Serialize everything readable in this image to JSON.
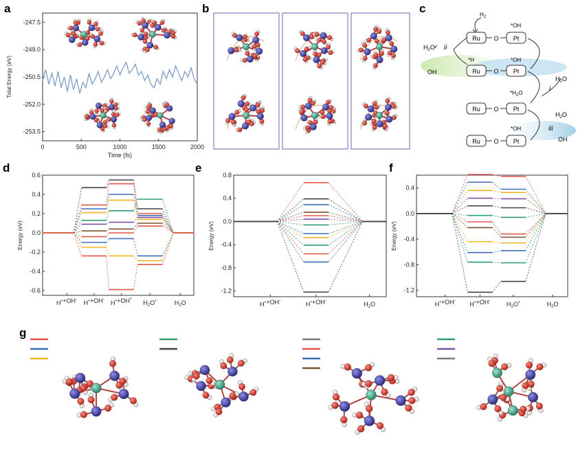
{
  "panel_labels": [
    "a",
    "b",
    "c",
    "d",
    "e",
    "f",
    "g"
  ],
  "chart_data": [
    {
      "type": "line",
      "panel": "a",
      "xlabel": "Time (fs)",
      "ylabel": "Total Energy (eV)",
      "xlim": [
        0,
        2000
      ],
      "ylim": [
        -254.0,
        -247.0
      ],
      "xticks": [
        "0",
        "500",
        "1000",
        "1500",
        "2000"
      ],
      "yticks": [
        "-247.5",
        "-249.0",
        "-250.5",
        "-252.0",
        "-253.5"
      ],
      "line_color": "#7e9cc8",
      "x": [
        0,
        40,
        80,
        120,
        160,
        200,
        240,
        280,
        320,
        360,
        400,
        440,
        480,
        520,
        560,
        600,
        640,
        680,
        720,
        760,
        800,
        840,
        880,
        920,
        960,
        1000,
        1040,
        1080,
        1120,
        1160,
        1200,
        1240,
        1280,
        1320,
        1360,
        1400,
        1440,
        1480,
        1520,
        1560,
        1600,
        1640,
        1680,
        1720,
        1760,
        1800,
        1840,
        1880,
        1920,
        1960,
        2000
      ],
      "y": [
        -250.7,
        -250.1,
        -250.9,
        -250.3,
        -251.0,
        -250.2,
        -251.1,
        -250.5,
        -251.3,
        -250.4,
        -251.2,
        -250.6,
        -251.4,
        -250.8,
        -251.1,
        -250.3,
        -250.9,
        -250.6,
        -250.2,
        -250.8,
        -250.5,
        -250.1,
        -250.6,
        -250.3,
        -249.9,
        -250.4,
        -250.0,
        -249.7,
        -250.3,
        -250.1,
        -249.8,
        -250.4,
        -250.2,
        -250.7,
        -250.4,
        -250.9,
        -251.1,
        -250.6,
        -250.9,
        -250.2,
        -250.6,
        -250.1,
        -250.5,
        -249.9,
        -250.3,
        -250.7,
        -250.2,
        -250.5,
        -250.0,
        -250.6,
        -250.9
      ]
    },
    {
      "type": "energy_levels",
      "panel": "d",
      "ylabel": "Energy (eV)",
      "ylim": [
        -0.65,
        0.6
      ],
      "yticks": [
        "0.6",
        "0.4",
        "0.2",
        "0.0",
        "-0.2",
        "-0.4",
        "-0.6"
      ],
      "xticks": [
        "H*+OH-",
        "H*+OH-",
        "H*+OH*",
        "H2O*",
        "H2O"
      ],
      "lines": [
        {
          "color": "#444444",
          "values": [
            0,
            0.47,
            0.55,
            0.25,
            0
          ]
        },
        {
          "color": "#e2554a",
          "values": [
            0,
            0.29,
            0.51,
            0.2,
            0
          ]
        },
        {
          "color": "#3d6fb8",
          "values": [
            0,
            0.25,
            0.4,
            0.18,
            0
          ]
        },
        {
          "color": "#f0b323",
          "values": [
            0,
            0.21,
            0.34,
            0.14,
            0
          ]
        },
        {
          "color": "#2f9c6e",
          "values": [
            0,
            0.13,
            0.23,
            0.35,
            0
          ]
        },
        {
          "color": "#7a52a6",
          "values": [
            0,
            0.09,
            0.11,
            0.16,
            0
          ]
        },
        {
          "color": "#7a5230",
          "values": [
            0,
            0.02,
            0.04,
            0.1,
            0
          ]
        },
        {
          "color": "#e2554a",
          "values": [
            0,
            -0.04,
            0.0,
            0.07,
            0
          ]
        },
        {
          "color": "#3d6fb8",
          "values": [
            0,
            -0.1,
            -0.06,
            -0.24,
            0
          ]
        },
        {
          "color": "#f0b323",
          "values": [
            0,
            -0.15,
            -0.24,
            -0.29,
            0
          ]
        },
        {
          "color": "#e2554a",
          "values": [
            0,
            -0.24,
            -0.59,
            -0.33,
            0
          ]
        }
      ]
    },
    {
      "type": "energy_levels",
      "panel": "e",
      "ylabel": "Energy (eV)",
      "ylim": [
        -1.3,
        0.8
      ],
      "yticks": [
        "0.8",
        "0.4",
        "0.0",
        "-0.4",
        "-0.8",
        "-1.2"
      ],
      "xticks": [
        "H*+OH-",
        "H*+OH-",
        "H2O"
      ],
      "lines": [
        {
          "color": "#e2554a",
          "values": [
            0,
            0.67,
            0
          ]
        },
        {
          "color": "#444444",
          "values": [
            0,
            0.39,
            0
          ]
        },
        {
          "color": "#3d6fb8",
          "values": [
            0,
            0.29,
            0
          ]
        },
        {
          "color": "#7a5230",
          "values": [
            0,
            0.16,
            0
          ]
        },
        {
          "color": "#e2554a",
          "values": [
            0,
            0.1,
            0
          ]
        },
        {
          "color": "#7a52a6",
          "values": [
            0,
            0.04,
            0
          ]
        },
        {
          "color": "#2f9c6e",
          "values": [
            0,
            -0.06,
            0
          ]
        },
        {
          "color": "#3d6fb8",
          "values": [
            0,
            -0.21,
            0
          ]
        },
        {
          "color": "#f0b323",
          "values": [
            0,
            -0.28,
            0
          ]
        },
        {
          "color": "#2f9c6e",
          "values": [
            0,
            -0.41,
            0
          ]
        },
        {
          "color": "#e2554a",
          "values": [
            0,
            -0.56,
            0
          ]
        },
        {
          "color": "#3d6fb8",
          "values": [
            0,
            -0.7,
            0
          ]
        },
        {
          "color": "#444444",
          "values": [
            0,
            -1.22,
            0
          ]
        }
      ]
    },
    {
      "type": "energy_levels",
      "panel": "f",
      "ylabel": "Energy (eV)",
      "ylim": [
        -1.3,
        0.6
      ],
      "yticks": [
        "0.4",
        "0.0",
        "-0.4",
        "-0.8",
        "-1.2"
      ],
      "xticks": [
        "H*+OH-",
        "H*+OH-",
        "H2O*",
        "H2O"
      ],
      "lines": [
        {
          "color": "#e2554a",
          "values": [
            0,
            0.61,
            0.58,
            0
          ]
        },
        {
          "color": "#3d6fb8",
          "values": [
            0,
            0.49,
            0.38,
            0
          ]
        },
        {
          "color": "#f0b323",
          "values": [
            0,
            0.36,
            0.33,
            0
          ]
        },
        {
          "color": "#7a52a6",
          "values": [
            0,
            0.24,
            0.23,
            0
          ]
        },
        {
          "color": "#444444",
          "values": [
            0,
            0.12,
            0.09,
            0
          ]
        },
        {
          "color": "#2f9c6e",
          "values": [
            0,
            -0.03,
            -0.06,
            0
          ]
        },
        {
          "color": "#e2554a",
          "values": [
            0,
            -0.13,
            -0.32,
            0
          ]
        },
        {
          "color": "#7a5230",
          "values": [
            0,
            -0.22,
            -0.37,
            0
          ]
        },
        {
          "color": "#f0b323",
          "values": [
            0,
            -0.44,
            -0.46,
            0
          ]
        },
        {
          "color": "#3d6fb8",
          "values": [
            0,
            -0.61,
            -0.58,
            0
          ]
        },
        {
          "color": "#2f9c6e",
          "values": [
            0,
            -0.76,
            -0.77,
            0
          ]
        },
        {
          "color": "#444444",
          "values": [
            0,
            -1.23,
            -1.06,
            0
          ]
        }
      ]
    }
  ],
  "c": {
    "h2": "H",
    "h2_sub": "2",
    "ohstar": "*OH",
    "hstar": "*H",
    "h2ostar": "*H",
    "h2ostar_sub": "2",
    "h2ostar_tail": "O",
    "ru": "Ru",
    "pt": "Pt",
    "o": "O",
    "oh": "OH",
    "h2o": "H",
    "h2o_sub": "2",
    "h2o_tail": "O",
    "i": "i",
    "ii": "ii",
    "iii": "iii"
  },
  "g": {
    "legend_groups": [
      [
        "#e2554a",
        "#3d6fb8",
        "#f0b323"
      ],
      [
        "#2f9c6e",
        "#444444"
      ],
      [
        "#7a7a7a",
        "#e2554a",
        "#3d6fb8",
        "#7a5230"
      ],
      [
        "#2f9c6e",
        "#7a52a6",
        "#7a7a7a"
      ]
    ]
  },
  "colors": {
    "ru_atom": "#2f2f8c",
    "pt_atom": "#2e8a70",
    "o_atom": "#d22a1c",
    "h_atom": "#e9e0dc",
    "frame": "#8080bb"
  }
}
